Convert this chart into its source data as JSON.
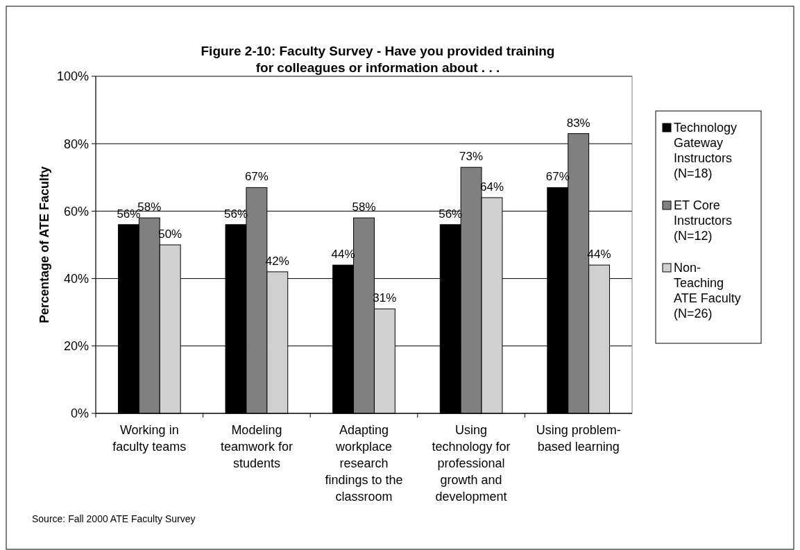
{
  "chart_data": {
    "type": "bar",
    "title": "Figure 2-10:  Faculty Survey -  Have you provided training for colleagues or information about . . .",
    "ylabel": "Percentage of ATE Faculty",
    "categories": [
      "Working in faculty teams",
      "Modeling teamwork for students",
      "Adapting workplace research findings to the classroom",
      "Using technology for professional growth and development",
      "Using problem-based learning"
    ],
    "series": [
      {
        "name": "Technology Gateway Instructors (N=18)",
        "color": "#000000",
        "values": [
          56,
          56,
          44,
          56,
          67
        ],
        "value_labels": [
          "56%",
          "56%",
          "44%",
          "56%",
          "67%"
        ]
      },
      {
        "name": "ET Core Instructors (N=12)",
        "color": "#808080",
        "values": [
          58,
          67,
          58,
          73,
          83
        ],
        "value_labels": [
          "58%",
          "67%",
          "58%",
          "73%",
          "83%"
        ]
      },
      {
        "name": "Non-Teaching ATE Faculty (N=26)",
        "color": "#d0d0d0",
        "values": [
          50,
          42,
          31,
          64,
          44
        ],
        "value_labels": [
          "50%",
          "42%",
          "31%",
          "64%",
          "44%"
        ]
      }
    ],
    "ylim": [
      0,
      100
    ],
    "yticks": [
      {
        "value": 0,
        "label": "0%"
      },
      {
        "value": 20,
        "label": "20%"
      },
      {
        "value": 40,
        "label": "40%"
      },
      {
        "value": 60,
        "label": "60%"
      },
      {
        "value": 80,
        "label": "80%"
      },
      {
        "value": 100,
        "label": "100%"
      }
    ],
    "grid": "y",
    "legend": "right",
    "annotations": [
      "Source:  Fall 2000 ATE Faculty Survey"
    ]
  }
}
